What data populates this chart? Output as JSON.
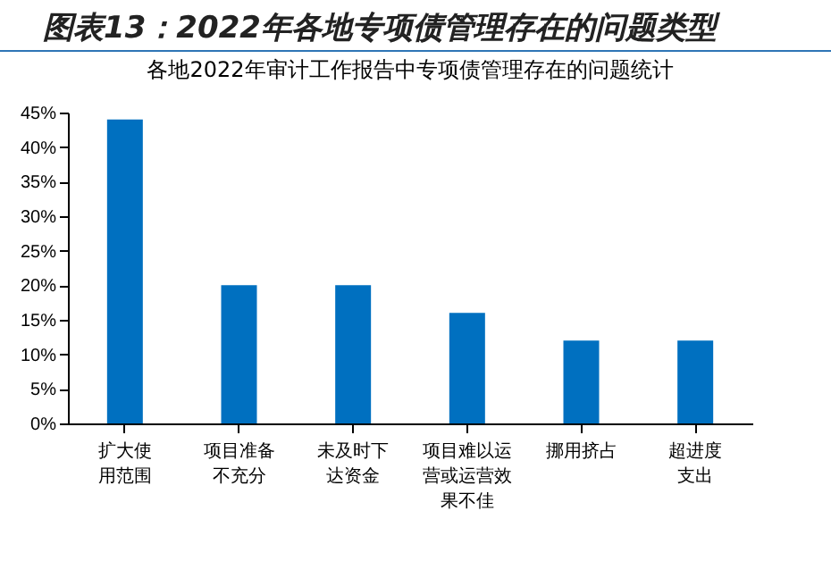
{
  "chart_data": {
    "type": "bar",
    "title": "图表13：2022年各地专项债管理存在的问题类型",
    "subtitle": "各地2022年审计工作报告中专项债管理存在的问题统计",
    "categories": [
      "扩大使用范围",
      "项目准备不充分",
      "未及时下达资金",
      "项目难以运营或运营效果不佳",
      "挪用挤占",
      "超进度支出"
    ],
    "values": [
      44,
      20,
      20,
      16,
      12,
      12
    ],
    "color": "#0070c0",
    "ylim": [
      0,
      45
    ],
    "yticks": [
      {
        "value": 0,
        "label": "0%"
      },
      {
        "value": 5,
        "label": "5%"
      },
      {
        "value": 10,
        "label": "10%"
      },
      {
        "value": 15,
        "label": "15%"
      },
      {
        "value": 20,
        "label": "20%"
      },
      {
        "value": 25,
        "label": "25%"
      },
      {
        "value": 30,
        "label": "30%"
      },
      {
        "value": 35,
        "label": "35%"
      },
      {
        "value": 40,
        "label": "40%"
      },
      {
        "value": 45,
        "label": "45%"
      }
    ],
    "grid": false
  }
}
